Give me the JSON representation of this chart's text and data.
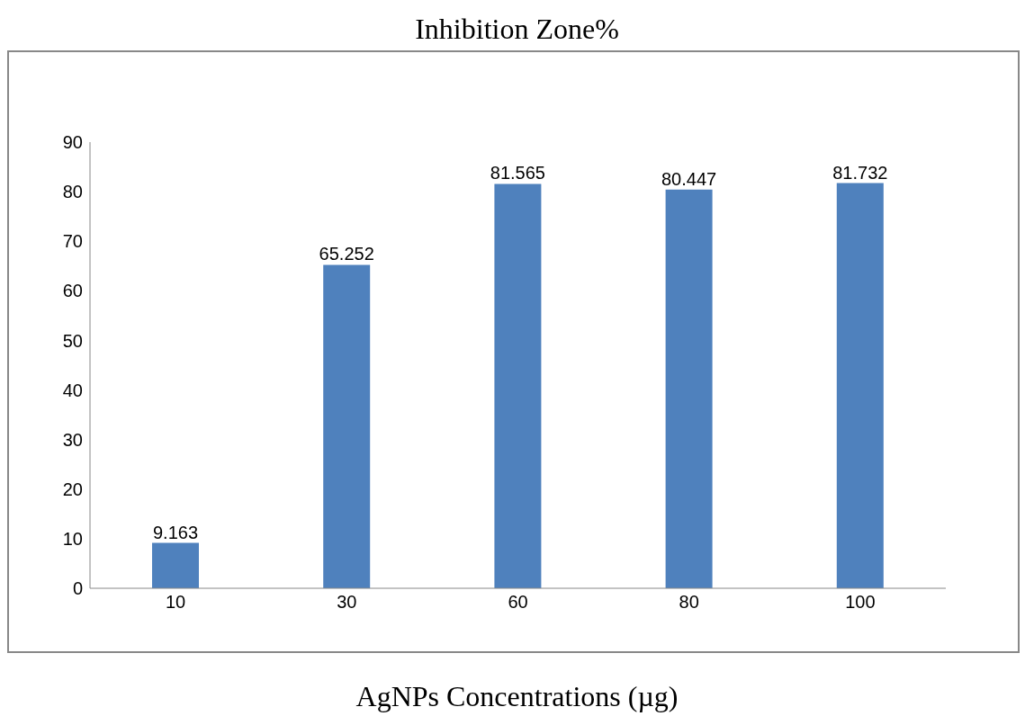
{
  "chart_data": {
    "type": "bar",
    "title": "Inhibition Zone%",
    "xlabel": "AgNPs Concentrations (µg)",
    "categories": [
      "10",
      "30",
      "60",
      "80",
      "100"
    ],
    "series": [
      {
        "color": "#4f81bd",
        "values": [
          9.163,
          65.252,
          81.565,
          80.447,
          81.732
        ]
      }
    ],
    "ylim": [
      0,
      90
    ],
    "yticks": [
      0,
      10,
      20,
      30,
      40,
      50,
      60,
      70,
      80,
      90
    ],
    "grid": false,
    "legend": false,
    "data_labels": true
  }
}
